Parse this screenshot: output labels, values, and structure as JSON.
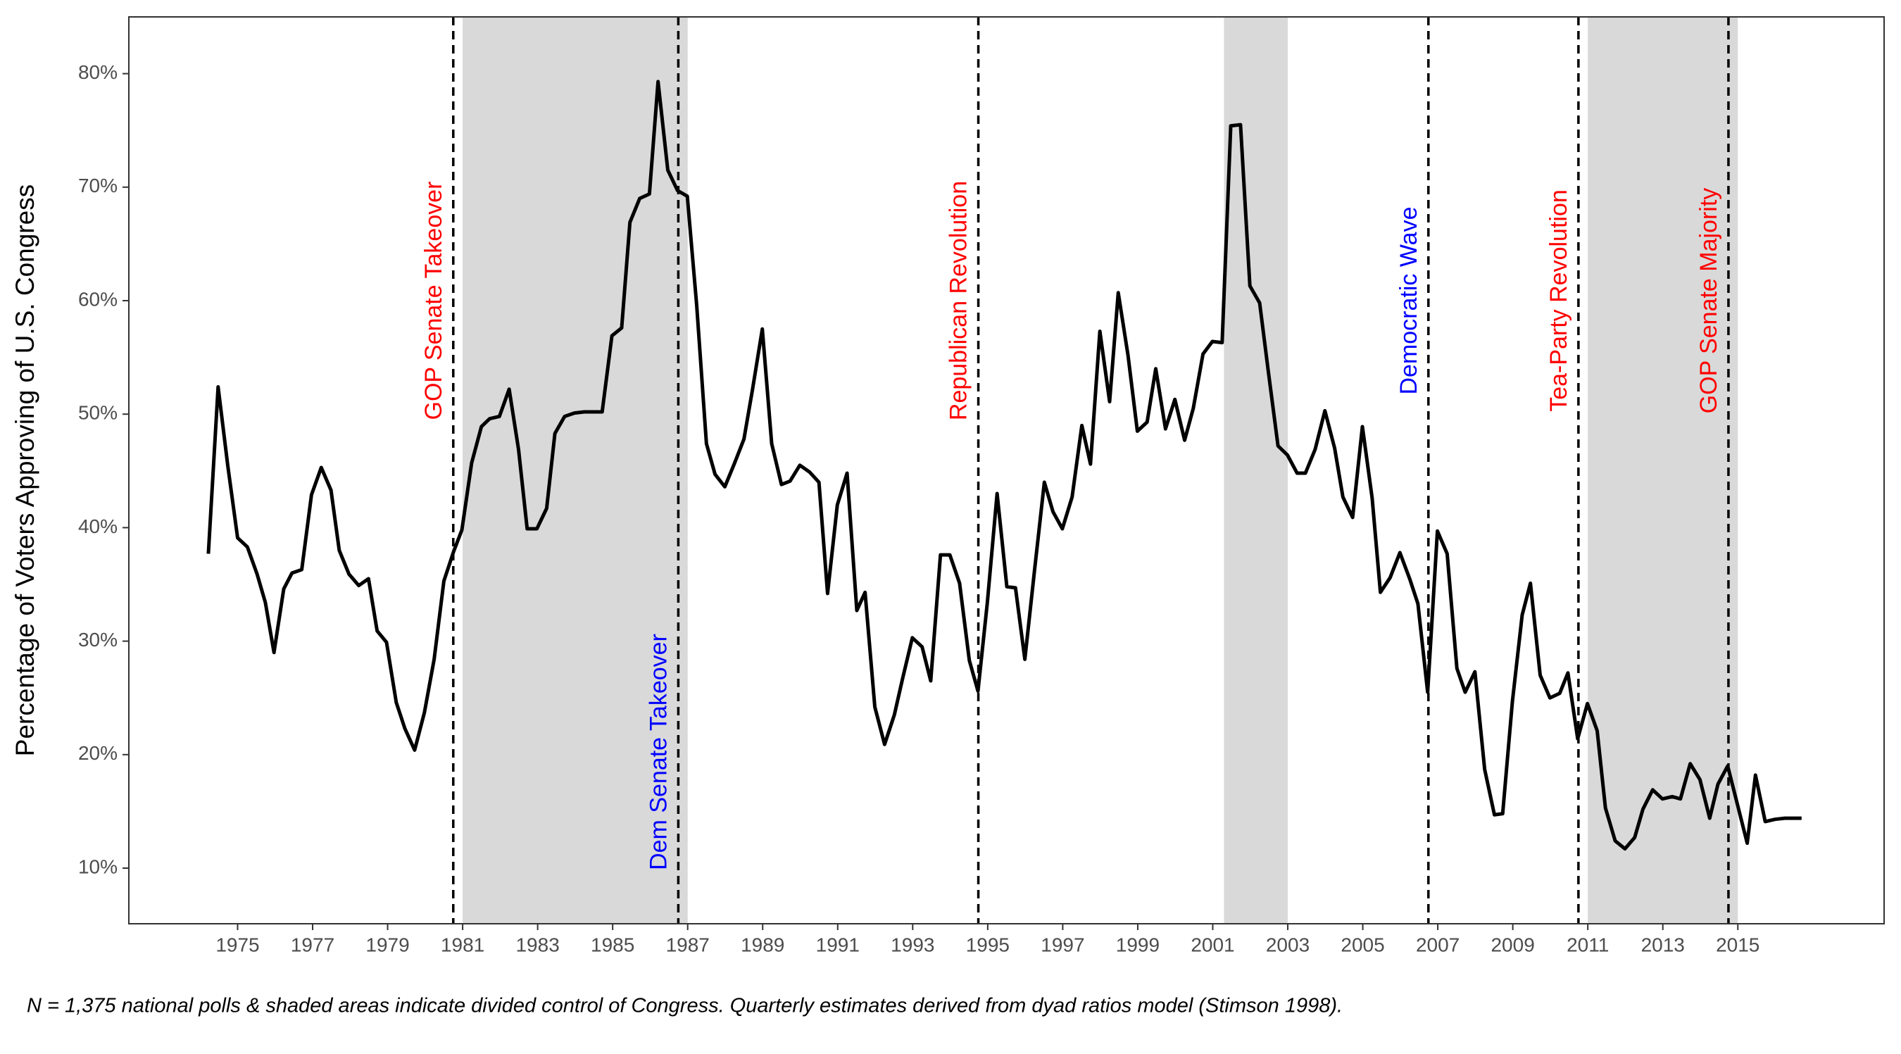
{
  "chart_data": {
    "type": "line",
    "y_label": "Percentage of Voters Approving of U.S. Congress",
    "caption": "N = 1,375 national polls & shaded areas indicate divided control of Congress. Quarterly estimates derived from dyad ratios model (Stimson 1998).",
    "color": "#000000",
    "xlim": [
      1972.1,
      2018.9
    ],
    "ylim": [
      5.1,
      85.0
    ],
    "xticks": [
      1975,
      1977,
      1979,
      1981,
      1983,
      1985,
      1987,
      1989,
      1991,
      1993,
      1995,
      1997,
      1999,
      2001,
      2003,
      2005,
      2007,
      2009,
      2011,
      2013,
      2015
    ],
    "yticks": [
      {
        "value": 10,
        "label": "10%"
      },
      {
        "value": 20,
        "label": "20%"
      },
      {
        "value": 30,
        "label": "30%"
      },
      {
        "value": 40,
        "label": "40%"
      },
      {
        "value": 50,
        "label": "50%"
      },
      {
        "value": 60,
        "label": "60%"
      },
      {
        "value": 70,
        "label": "70%"
      },
      {
        "value": 80,
        "label": "80%"
      }
    ],
    "shaded_regions": [
      {
        "start": 1981.0,
        "end": 1987.0
      },
      {
        "start": 2001.3,
        "end": 2003.0
      },
      {
        "start": 2011.0,
        "end": 2015.0
      }
    ],
    "annotations": [
      {
        "label": "GOP Senate Takeover",
        "x": 1980.75,
        "color": "#ff0000"
      },
      {
        "label": "Dem Senate Takeover",
        "x": 1986.75,
        "color": "#0000ff"
      },
      {
        "label": "Republican Revolution",
        "x": 1994.75,
        "color": "#ff0000"
      },
      {
        "label": "Democratic Wave",
        "x": 2006.75,
        "color": "#0000ff"
      },
      {
        "label": "Tea-Party Revolution",
        "x": 2010.75,
        "color": "#ff0000"
      },
      {
        "label": "GOP Senate Majority",
        "x": 2014.75,
        "color": "#ff0000"
      }
    ],
    "x": [
      1974.22,
      1974.48,
      1974.74,
      1975.0,
      1975.26,
      1975.52,
      1975.74,
      1975.97,
      1976.23,
      1976.45,
      1976.71,
      1976.97,
      1977.23,
      1977.49,
      1977.71,
      1977.97,
      1978.23,
      1978.49,
      1978.72,
      1978.97,
      1979.23,
      1979.46,
      1979.72,
      1979.98,
      1980.24,
      1980.5,
      1980.76,
      1980.98,
      1981.24,
      1981.5,
      1981.72,
      1981.98,
      1982.24,
      1982.49,
      1982.72,
      1982.98,
      1983.24,
      1983.46,
      1983.72,
      1983.98,
      1984.24,
      1984.46,
      1984.72,
      1984.98,
      1985.24,
      1985.46,
      1985.72,
      1985.98,
      1986.21,
      1986.47,
      1986.73,
      1986.99,
      1987.24,
      1987.5,
      1987.73,
      1987.99,
      1988.24,
      1988.5,
      1988.73,
      1988.99,
      1989.24,
      1989.5,
      1989.73,
      1989.99,
      1990.25,
      1990.5,
      1990.73,
      1990.99,
      1991.25,
      1991.51,
      1991.73,
      1991.99,
      1992.25,
      1992.51,
      1992.73,
      1992.99,
      1993.25,
      1993.48,
      1993.74,
      1993.99,
      1994.25,
      1994.51,
      1994.74,
      1994.99,
      1995.25,
      1995.51,
      1995.74,
      1995.99,
      1996.25,
      1996.51,
      1996.74,
      1996.99,
      1997.25,
      1997.51,
      1997.74,
      1997.99,
      1998.25,
      1998.48,
      1998.74,
      1998.99,
      1999.25,
      1999.48,
      1999.74,
      1999.99,
      2000.25,
      2000.48,
      2000.74,
      2000.99,
      2001.25,
      2001.48,
      2001.74,
      2001.99,
      2002.25,
      2002.48,
      2002.74,
      2002.99,
      2003.25,
      2003.47,
      2003.73,
      2003.99,
      2004.25,
      2004.47,
      2004.73,
      2004.99,
      2005.25,
      2005.47,
      2005.73,
      2005.99,
      2006.25,
      2006.47,
      2006.73,
      2006.99,
      2007.25,
      2007.51,
      2007.73,
      2007.99,
      2008.25,
      2008.51,
      2008.73,
      2008.99,
      2009.25,
      2009.47,
      2009.73,
      2009.99,
      2010.25,
      2010.47,
      2010.73,
      2010.99,
      2011.25,
      2011.47,
      2011.73,
      2011.99,
      2012.25,
      2012.47,
      2012.73,
      2012.99,
      2013.25,
      2013.47,
      2013.73,
      2013.99,
      2014.25,
      2014.47,
      2014.73,
      2014.99,
      2015.25,
      2015.47,
      2015.73,
      2015.99,
      2016.25,
      2016.7
    ],
    "values": [
      37.7,
      52.4,
      45.4,
      39.1,
      38.3,
      35.9,
      33.4,
      29.0,
      34.6,
      36.0,
      36.3,
      42.9,
      45.3,
      43.3,
      38.0,
      35.9,
      34.9,
      35.5,
      30.9,
      29.9,
      24.6,
      22.3,
      20.4,
      23.7,
      28.4,
      35.3,
      37.9,
      39.8,
      45.7,
      48.9,
      49.6,
      49.8,
      52.2,
      46.9,
      39.9,
      39.9,
      41.7,
      48.3,
      49.8,
      50.1,
      50.2,
      50.2,
      50.2,
      56.9,
      57.6,
      66.9,
      69.0,
      69.4,
      79.3,
      71.5,
      69.7,
      69.2,
      59.6,
      47.4,
      44.7,
      43.6,
      45.6,
      47.8,
      52.2,
      57.5,
      47.4,
      43.8,
      44.1,
      45.5,
      44.9,
      44.0,
      34.2,
      42.0,
      44.8,
      32.7,
      34.3,
      24.2,
      20.9,
      23.5,
      26.7,
      30.3,
      29.5,
      26.5,
      37.6,
      37.6,
      35.1,
      28.3,
      25.6,
      33.4,
      43.0,
      34.8,
      34.7,
      28.4,
      36.3,
      44.0,
      41.4,
      39.9,
      42.7,
      49.0,
      45.6,
      57.3,
      51.1,
      60.7,
      55.2,
      48.5,
      49.3,
      54.0,
      48.7,
      51.3,
      47.7,
      50.5,
      55.3,
      56.4,
      56.3,
      75.4,
      75.5,
      61.3,
      59.8,
      53.8,
      47.2,
      46.4,
      44.8,
      44.8,
      46.9,
      50.3,
      47.0,
      42.7,
      40.9,
      48.9,
      42.6,
      34.3,
      35.6,
      37.8,
      35.5,
      33.3,
      25.5,
      39.7,
      37.7,
      27.6,
      25.5,
      27.3,
      18.7,
      14.7,
      14.8,
      24.7,
      32.3,
      35.1,
      27.0,
      25.0,
      25.4,
      27.2,
      21.4,
      24.5,
      22.1,
      15.3,
      12.4,
      11.7,
      12.7,
      15.2,
      16.9,
      16.1,
      16.3,
      16.1,
      19.2,
      17.8,
      14.4,
      17.4,
      19.0,
      15.6,
      12.2,
      18.2,
      14.1,
      14.3,
      14.4,
      14.4
    ]
  }
}
